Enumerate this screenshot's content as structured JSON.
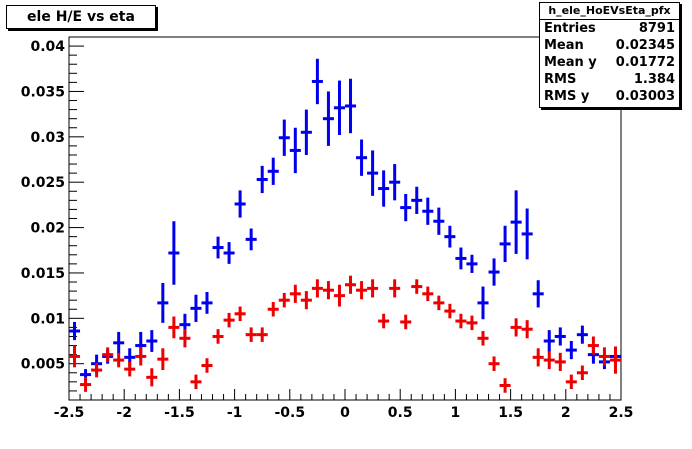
{
  "title": "ele H/E vs eta",
  "stats": {
    "name": "h_ele_HoEVsEta_pfx",
    "rows": [
      {
        "label": "Entries",
        "value": "8791"
      },
      {
        "label": "Mean",
        "value": "0.02345"
      },
      {
        "label": "Mean y",
        "value": "0.01772"
      },
      {
        "label": "RMS",
        "value": "1.384"
      },
      {
        "label": "RMS y",
        "value": "0.03003"
      }
    ]
  },
  "chart_data": {
    "type": "scatter",
    "title": "ele H/E vs eta",
    "xlabel": "",
    "ylabel": "",
    "xlim": [
      -2.5,
      2.5
    ],
    "ylim": [
      0.001,
      0.041
    ],
    "x_ticks": [
      "-2.5",
      "-2",
      "-1.5",
      "-1",
      "-0.5",
      "0",
      "0.5",
      "1",
      "1.5",
      "2",
      "2.5"
    ],
    "y_ticks": [
      "0.005",
      "0.01",
      "0.015",
      "0.02",
      "0.025",
      "0.03",
      "0.035",
      "0.04"
    ],
    "x_bin_width": 0.1,
    "colors": {
      "blue": "#0000ee",
      "red": "#ee0000"
    },
    "series": [
      {
        "color": "blue",
        "x": [
          -2.45,
          -2.35,
          -2.25,
          -2.15,
          -2.05,
          -1.95,
          -1.85,
          -1.75,
          -1.65,
          -1.55,
          -1.45,
          -1.35,
          -1.25,
          -1.15,
          -1.05,
          -0.95,
          -0.85,
          -0.75,
          -0.65,
          -0.55,
          -0.45,
          -0.35,
          -0.25,
          -0.15,
          -0.05,
          0.05,
          0.15,
          0.25,
          0.35,
          0.45,
          0.55,
          0.65,
          0.75,
          0.85,
          0.95,
          1.05,
          1.15,
          1.25,
          1.35,
          1.45,
          1.55,
          1.65,
          1.75,
          1.85,
          1.95,
          2.05,
          2.15,
          2.25,
          2.35,
          2.45
        ],
        "y": [
          0.0086,
          0.0038,
          0.005,
          0.0058,
          0.0073,
          0.0057,
          0.007,
          0.0075,
          0.0117,
          0.0172,
          0.0093,
          0.0111,
          0.0117,
          0.0178,
          0.0172,
          0.0226,
          0.0187,
          0.0253,
          0.0262,
          0.0299,
          0.0285,
          0.0305,
          0.0361,
          0.032,
          0.0332,
          0.0334,
          0.0277,
          0.026,
          0.0243,
          0.025,
          0.0222,
          0.023,
          0.0218,
          0.0207,
          0.019,
          0.0166,
          0.016,
          0.0117,
          0.0151,
          0.0182,
          0.0206,
          0.0193,
          0.0127,
          0.0075,
          0.008,
          0.0065,
          0.0082,
          0.006,
          0.0052,
          0.0058
        ],
        "err": [
          0.001,
          0.0006,
          0.001,
          0.0008,
          0.0012,
          0.001,
          0.0015,
          0.0012,
          0.0022,
          0.0035,
          0.0012,
          0.0015,
          0.0012,
          0.0012,
          0.0012,
          0.0015,
          0.0012,
          0.0015,
          0.0015,
          0.002,
          0.0025,
          0.0025,
          0.0025,
          0.003,
          0.003,
          0.003,
          0.002,
          0.0025,
          0.002,
          0.002,
          0.0015,
          0.0015,
          0.0015,
          0.0015,
          0.0012,
          0.0012,
          0.001,
          0.0018,
          0.0015,
          0.002,
          0.0035,
          0.0028,
          0.0015,
          0.0012,
          0.001,
          0.001,
          0.001,
          0.001,
          0.0008,
          0.001
        ]
      },
      {
        "color": "red",
        "x": [
          -2.45,
          -2.35,
          -2.25,
          -2.15,
          -2.05,
          -1.95,
          -1.85,
          -1.75,
          -1.65,
          -1.55,
          -1.45,
          -1.35,
          -1.25,
          -1.15,
          -1.05,
          -0.95,
          -0.85,
          -0.75,
          -0.65,
          -0.55,
          -0.45,
          -0.35,
          -0.25,
          -0.15,
          -0.05,
          0.05,
          0.15,
          0.25,
          0.35,
          0.45,
          0.55,
          0.65,
          0.75,
          0.85,
          0.95,
          1.05,
          1.15,
          1.25,
          1.35,
          1.45,
          1.55,
          1.65,
          1.75,
          1.85,
          1.95,
          2.05,
          2.15,
          2.25,
          2.35,
          2.45
        ],
        "y": [
          0.0058,
          0.0027,
          0.0043,
          0.006,
          0.0054,
          0.0044,
          0.0058,
          0.0035,
          0.0055,
          0.009,
          0.0078,
          0.003,
          0.0048,
          0.008,
          0.0098,
          0.0105,
          0.0082,
          0.0082,
          0.011,
          0.012,
          0.0127,
          0.012,
          0.0133,
          0.0131,
          0.0125,
          0.0137,
          0.0131,
          0.0133,
          0.0097,
          0.0133,
          0.0096,
          0.0135,
          0.0127,
          0.0117,
          0.0108,
          0.0097,
          0.0095,
          0.0078,
          0.005,
          0.0026,
          0.009,
          0.0088,
          0.0057,
          0.0054,
          0.0052,
          0.003,
          0.004,
          0.007,
          0.0058,
          0.0054
        ],
        "err": [
          0.0012,
          0.0008,
          0.0008,
          0.0008,
          0.0008,
          0.0008,
          0.001,
          0.001,
          0.0012,
          0.0012,
          0.001,
          0.0008,
          0.0008,
          0.0008,
          0.0008,
          0.0008,
          0.0008,
          0.0008,
          0.0008,
          0.0008,
          0.001,
          0.001,
          0.001,
          0.001,
          0.0012,
          0.001,
          0.001,
          0.001,
          0.0008,
          0.001,
          0.0008,
          0.0008,
          0.0008,
          0.0008,
          0.0008,
          0.0008,
          0.0008,
          0.0008,
          0.0008,
          0.0008,
          0.001,
          0.001,
          0.001,
          0.001,
          0.001,
          0.0008,
          0.0008,
          0.001,
          0.001,
          0.0015
        ]
      }
    ]
  }
}
